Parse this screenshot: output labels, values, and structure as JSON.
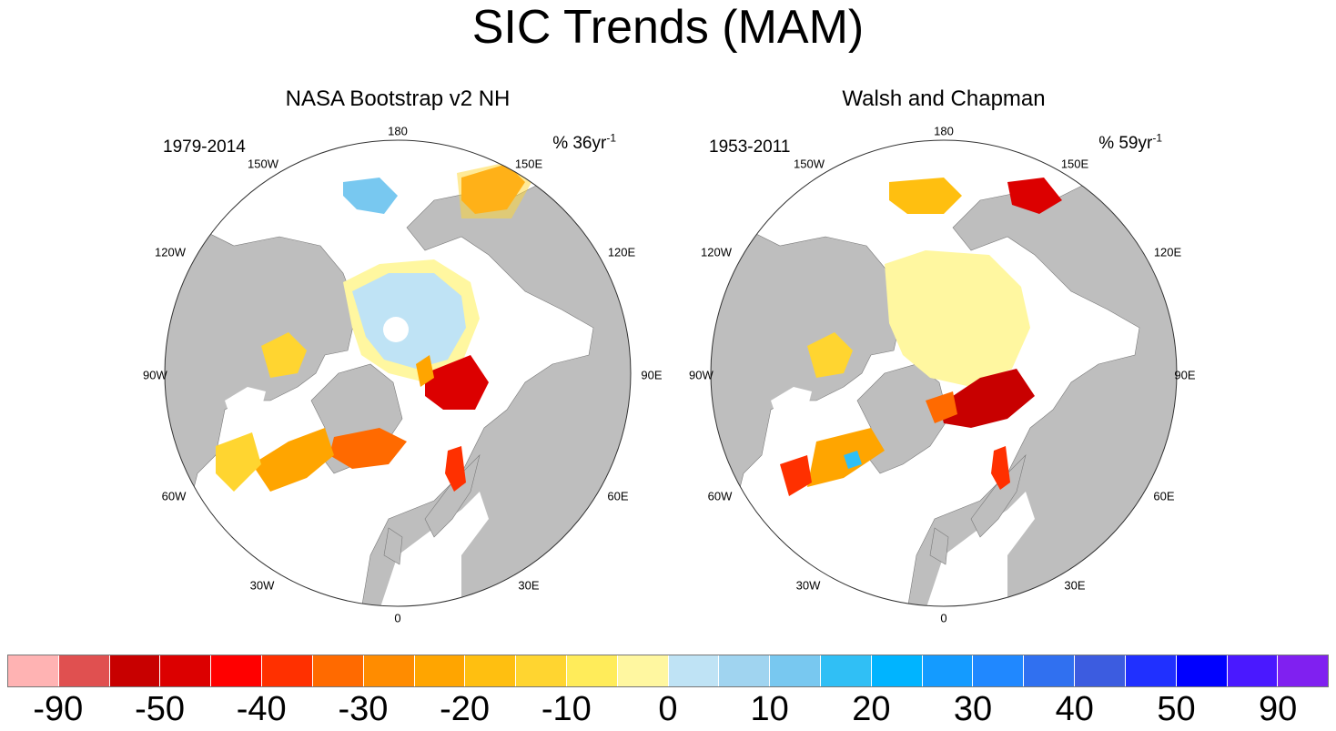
{
  "title": "SIC Trends (MAM)",
  "panels": [
    {
      "title": "NASA Bootstrap v2 NH",
      "period": "1979-2014",
      "units_prefix": "% 36yr",
      "units_exp": "-1",
      "lon_labels": [
        "180",
        "150E",
        "120E",
        "90E",
        "60E",
        "30E",
        "0",
        "30W",
        "60W",
        "90W",
        "120W",
        "150W"
      ]
    },
    {
      "title": "Walsh and Chapman",
      "period": "1953-2011",
      "units_prefix": "% 59yr",
      "units_exp": "-1",
      "lon_labels": [
        "180",
        "150E",
        "120E",
        "90E",
        "60E",
        "30E",
        "0",
        "30W",
        "60W",
        "90W",
        "120W",
        "150W"
      ]
    }
  ],
  "colorbar": {
    "labels": [
      "-90",
      "-50",
      "-40",
      "-30",
      "-20",
      "-10",
      "0",
      "10",
      "20",
      "30",
      "40",
      "50",
      "90"
    ],
    "colors": [
      "#ffb3b3",
      "#e05050",
      "#c80000",
      "#dc0000",
      "#ff0000",
      "#ff3000",
      "#ff6a00",
      "#ff8c00",
      "#ffa500",
      "#ffbf10",
      "#ffd530",
      "#ffec5a",
      "#fff7a0",
      "#bfe3f5",
      "#a0d4f0",
      "#78c8f0",
      "#30bff5",
      "#00b4ff",
      "#149bff",
      "#2088ff",
      "#3070f0",
      "#3c5ce0",
      "#2030ff",
      "#0000ff",
      "#4a18ff",
      "#8020f0"
    ]
  },
  "colors": {
    "land": "#bebebe",
    "ocean": "#ffffff",
    "coast": "#7a7a7a"
  }
}
